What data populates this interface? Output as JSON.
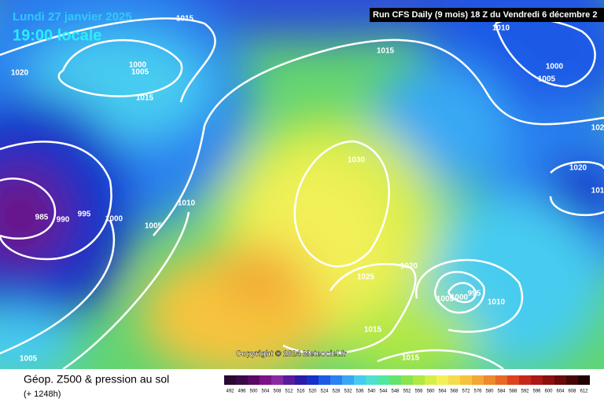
{
  "header": {
    "date": "Lundi 27 janvier 2025",
    "time": "19:00 locale",
    "run": "Run CFS Daily (9 mois) 18 Z du Vendredi 6 décembre 2"
  },
  "isobar_labels": [
    1015,
    1010,
    1020,
    1000,
    1005,
    1015,
    1015,
    1000,
    1005,
    102,
    1020,
    101,
    1030,
    985,
    990,
    995,
    1000,
    1005,
    1010,
    1025,
    1020,
    1005,
    1000,
    995,
    1010,
    1015,
    1005,
    1015
  ],
  "copyright": "Copyright © 2024 Meteociel.fr",
  "footer": {
    "title": "Géop. Z500 & pression au sol",
    "subtitle": "(+ 1248h)"
  },
  "legend": {
    "values": [
      492,
      496,
      500,
      504,
      508,
      512,
      516,
      520,
      524,
      528,
      532,
      536,
      540,
      544,
      548,
      552,
      556,
      560,
      564,
      568,
      572,
      576,
      580,
      584,
      588,
      592,
      596,
      600,
      604,
      608,
      612
    ],
    "colors": [
      "#2a0a30",
      "#3c0a48",
      "#5a0a66",
      "#7a1488",
      "#8a2aa0",
      "#5a1c9c",
      "#2a1ca8",
      "#1432c8",
      "#1e5ae6",
      "#2a82f0",
      "#38a8f4",
      "#46ccf0",
      "#4ee0d0",
      "#50e8a0",
      "#64e46c",
      "#8ae44c",
      "#b0e844",
      "#d6ee48",
      "#f2f058",
      "#f6dc4c",
      "#f6c43c",
      "#f2a834",
      "#ec8a2c",
      "#e66a26",
      "#dc4420",
      "#c8281c",
      "#ac1818",
      "#8c1010",
      "#6a0a0a",
      "#480606",
      "#200202"
    ]
  }
}
